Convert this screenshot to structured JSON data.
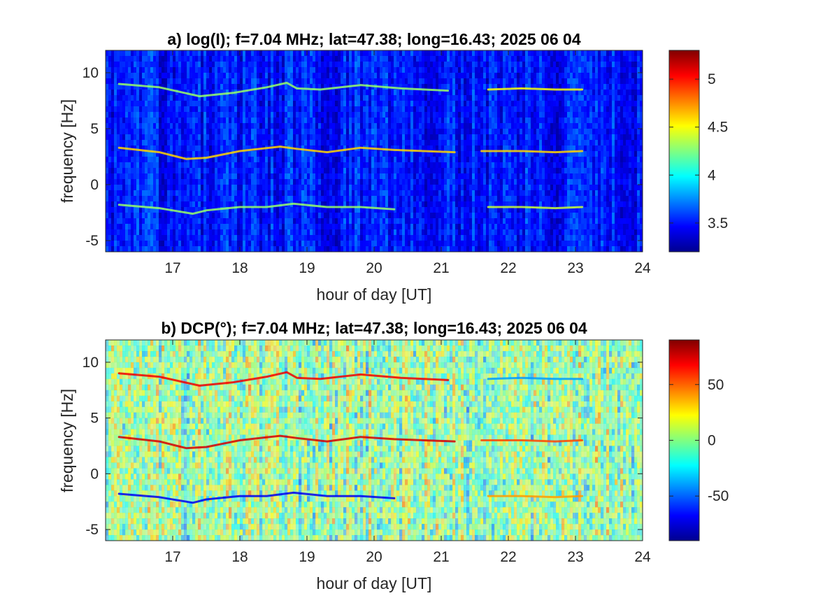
{
  "chart_data": [
    {
      "type": "heatmap",
      "panel": "a",
      "title": "a) log(I); f=7.04 MHz;  lat=47.38; long=16.43; 2025 06 04",
      "xlabel": "hour of day [UT]",
      "ylabel": "frequency [Hz]",
      "xlim": [
        16,
        24
      ],
      "ylim": [
        -6,
        12
      ],
      "xticks": [
        "17",
        "18",
        "19",
        "20",
        "21",
        "22",
        "23",
        "24"
      ],
      "yticks": [
        "-5",
        "0",
        "5",
        "10"
      ],
      "colorbar": {
        "colormap": "jet",
        "range": [
          3.2,
          5.3
        ],
        "ticks": [
          "3.5",
          "4",
          "4.5",
          "5"
        ]
      },
      "background_level": 3.5,
      "traces": [
        {
          "x": [
            16.2,
            16.8,
            17.4,
            17.9,
            18.4,
            18.7,
            18.85,
            19.2,
            19.8,
            20.4,
            21.1
          ],
          "y": [
            9.0,
            8.7,
            7.9,
            8.2,
            8.7,
            9.1,
            8.6,
            8.5,
            8.9,
            8.6,
            8.4
          ],
          "level": 4.3
        },
        {
          "x": [
            16.2,
            16.8,
            17.2,
            17.5,
            18.0,
            18.6,
            18.85,
            19.3,
            19.8,
            20.3,
            21.2
          ],
          "y": [
            3.3,
            2.9,
            2.3,
            2.4,
            3.0,
            3.4,
            3.2,
            2.9,
            3.3,
            3.1,
            2.9
          ],
          "level": 4.6
        },
        {
          "x": [
            16.2,
            16.8,
            17.3,
            17.5,
            18.0,
            18.4,
            18.8,
            19.3,
            19.8,
            20.3
          ],
          "y": [
            -1.8,
            -2.1,
            -2.6,
            -2.3,
            -2.0,
            -2.0,
            -1.7,
            -2.0,
            -2.0,
            -2.2
          ],
          "level": 4.3
        },
        {
          "x": [
            21.7,
            22.2,
            22.7,
            23.1
          ],
          "y": [
            8.5,
            8.6,
            8.5,
            8.5
          ],
          "level": 4.5
        },
        {
          "x": [
            21.6,
            22.2,
            22.7,
            23.1
          ],
          "y": [
            3.0,
            3.0,
            2.9,
            3.0
          ],
          "level": 4.6
        },
        {
          "x": [
            21.7,
            22.2,
            22.7,
            23.1
          ],
          "y": [
            -2.0,
            -2.0,
            -2.1,
            -2.0
          ],
          "level": 4.4
        }
      ]
    },
    {
      "type": "heatmap",
      "panel": "b",
      "title": "b) DCP(°); f=7.04 MHz;  lat=47.38; long=16.43; 2025 06 04",
      "xlabel": "hour of day [UT]",
      "ylabel": "frequency [Hz]",
      "xlim": [
        16,
        24
      ],
      "ylim": [
        -6,
        12
      ],
      "xticks": [
        "17",
        "18",
        "19",
        "20",
        "21",
        "22",
        "23",
        "24"
      ],
      "yticks": [
        "-5",
        "0",
        "5",
        "10"
      ],
      "colorbar": {
        "colormap": "jet",
        "range": [
          -90,
          90
        ],
        "ticks": [
          "-50",
          "0",
          "50"
        ]
      },
      "background_level": 0,
      "traces": [
        {
          "x": [
            16.2,
            16.8,
            17.4,
            17.9,
            18.4,
            18.7,
            18.85,
            19.2,
            19.8,
            20.4,
            21.1
          ],
          "y": [
            9.0,
            8.7,
            7.9,
            8.2,
            8.7,
            9.1,
            8.6,
            8.5,
            8.9,
            8.6,
            8.4
          ],
          "level": 70
        },
        {
          "x": [
            16.2,
            16.8,
            17.2,
            17.5,
            18.0,
            18.6,
            18.85,
            19.3,
            19.8,
            20.3,
            21.2
          ],
          "y": [
            3.3,
            2.9,
            2.3,
            2.4,
            3.0,
            3.4,
            3.2,
            2.9,
            3.3,
            3.1,
            2.9
          ],
          "level": 75
        },
        {
          "x": [
            16.2,
            16.8,
            17.3,
            17.5,
            18.0,
            18.4,
            18.8,
            19.3,
            19.8,
            20.3
          ],
          "y": [
            -1.8,
            -2.1,
            -2.6,
            -2.3,
            -2.0,
            -2.0,
            -1.7,
            -2.0,
            -2.0,
            -2.2
          ],
          "level": -70
        },
        {
          "x": [
            21.7,
            22.2,
            22.7,
            23.1
          ],
          "y": [
            8.5,
            8.6,
            8.5,
            8.5
          ],
          "level": -40
        },
        {
          "x": [
            21.6,
            22.2,
            22.7,
            23.1
          ],
          "y": [
            3.0,
            3.0,
            2.9,
            3.0
          ],
          "level": 55
        },
        {
          "x": [
            21.7,
            22.2,
            22.7,
            23.1
          ],
          "y": [
            -2.0,
            -2.0,
            -2.1,
            -2.0
          ],
          "level": 40
        }
      ]
    }
  ]
}
